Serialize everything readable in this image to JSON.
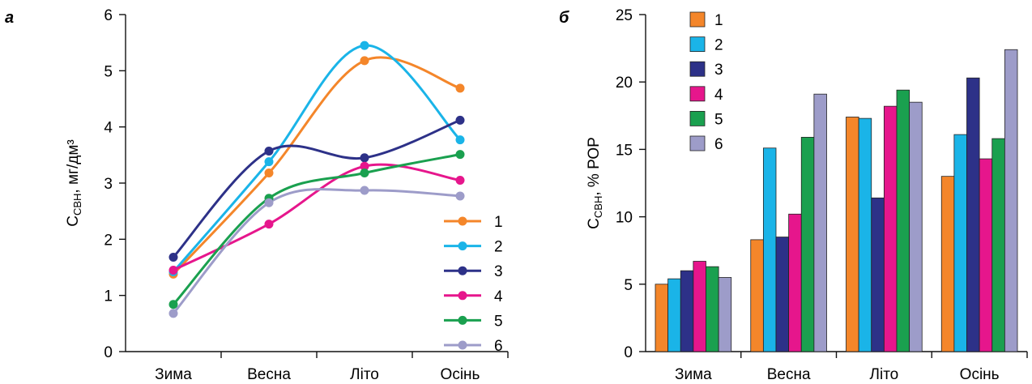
{
  "chart_data": [
    {
      "panel": "а",
      "type": "line",
      "categories": [
        "Зима",
        "Весна",
        "Літо",
        "Осінь"
      ],
      "ylim": [
        0,
        6
      ],
      "yticks": [
        0,
        1,
        2,
        3,
        4,
        5,
        6
      ],
      "ylabel": {
        "main": "C",
        "sub": "СВН",
        "rest": ", мг/дм³"
      },
      "xlabel": "",
      "grid": false,
      "legend_position": "bottom-right",
      "series": [
        {
          "name": "1",
          "color": "#f4862a",
          "values": [
            1.38,
            3.18,
            5.18,
            4.69
          ]
        },
        {
          "name": "2",
          "color": "#1ab4e8",
          "values": [
            1.42,
            3.38,
            5.45,
            3.77
          ]
        },
        {
          "name": "3",
          "color": "#2d3188",
          "values": [
            1.68,
            3.57,
            3.45,
            4.12
          ]
        },
        {
          "name": "4",
          "color": "#e6168c",
          "values": [
            1.45,
            2.27,
            3.3,
            3.05
          ]
        },
        {
          "name": "5",
          "color": "#1aa04f",
          "values": [
            0.84,
            2.73,
            3.18,
            3.51
          ]
        },
        {
          "name": "6",
          "color": "#9d9cc9",
          "values": [
            0.68,
            2.65,
            2.87,
            2.77
          ]
        }
      ]
    },
    {
      "panel": "б",
      "type": "bar",
      "categories": [
        "Зима",
        "Весна",
        "Літо",
        "Осінь"
      ],
      "ylim": [
        0,
        25
      ],
      "yticks": [
        0,
        5,
        10,
        15,
        20,
        25
      ],
      "ylabel": {
        "main": "C",
        "sub": "СВН",
        "rest": ", % РОР"
      },
      "xlabel": "",
      "grid": false,
      "legend_position": "top-left",
      "series": [
        {
          "name": "1",
          "color": "#f4862a",
          "values": [
            5.0,
            8.3,
            17.4,
            13.0
          ]
        },
        {
          "name": "2",
          "color": "#1ab4e8",
          "values": [
            5.4,
            15.1,
            17.3,
            16.1
          ]
        },
        {
          "name": "3",
          "color": "#2d3188",
          "values": [
            6.0,
            8.5,
            11.4,
            20.3
          ]
        },
        {
          "name": "4",
          "color": "#e6168c",
          "values": [
            6.7,
            10.2,
            18.2,
            14.3
          ]
        },
        {
          "name": "5",
          "color": "#1aa04f",
          "values": [
            6.3,
            15.9,
            19.4,
            15.8
          ]
        },
        {
          "name": "6",
          "color": "#9d9cc9",
          "values": [
            5.5,
            19.1,
            18.5,
            22.4
          ]
        }
      ]
    }
  ]
}
